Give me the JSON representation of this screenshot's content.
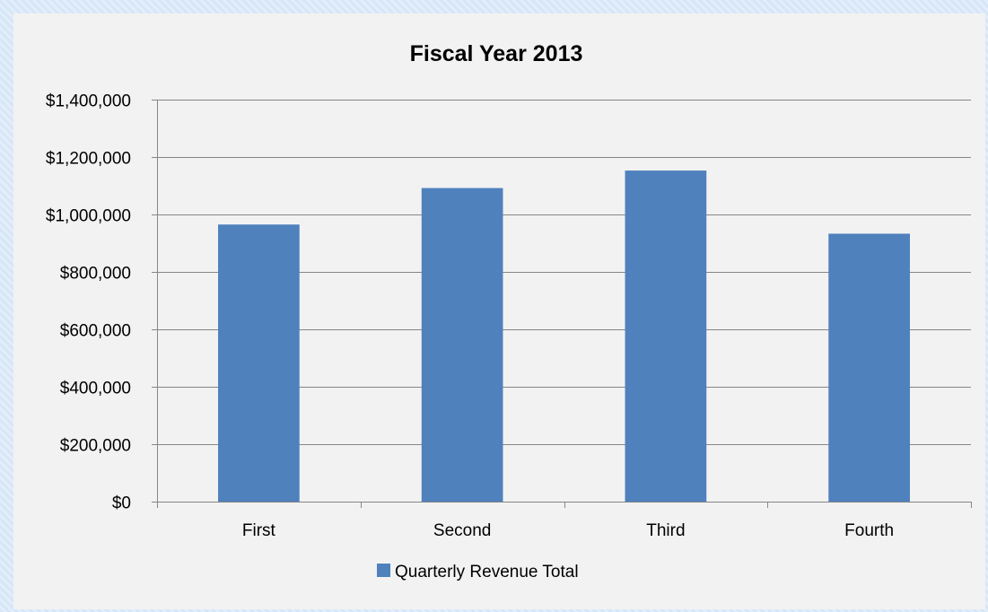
{
  "chart_data": {
    "type": "bar",
    "title": "Fiscal Year 2013",
    "categories": [
      "First",
      "Second",
      "Third",
      "Fourth"
    ],
    "series": [
      {
        "name": "Quarterly Revenue Total",
        "values": [
          965000,
          1092000,
          1153000,
          933000
        ]
      }
    ],
    "ylim": [
      0,
      1400000
    ],
    "y_ticks": [
      0,
      200000,
      400000,
      600000,
      800000,
      1000000,
      1200000,
      1400000
    ],
    "y_tick_labels": [
      "$0",
      "$200,000",
      "$400,000",
      "$600,000",
      "$800,000",
      "$1,000,000",
      "$1,200,000",
      "$1,400,000"
    ],
    "grid": true,
    "legend_position": "bottom",
    "colors": {
      "bar": "#4f81bd",
      "gridline": "#868686",
      "axis": "#868686",
      "panel_background": "#f2f2f2"
    }
  }
}
